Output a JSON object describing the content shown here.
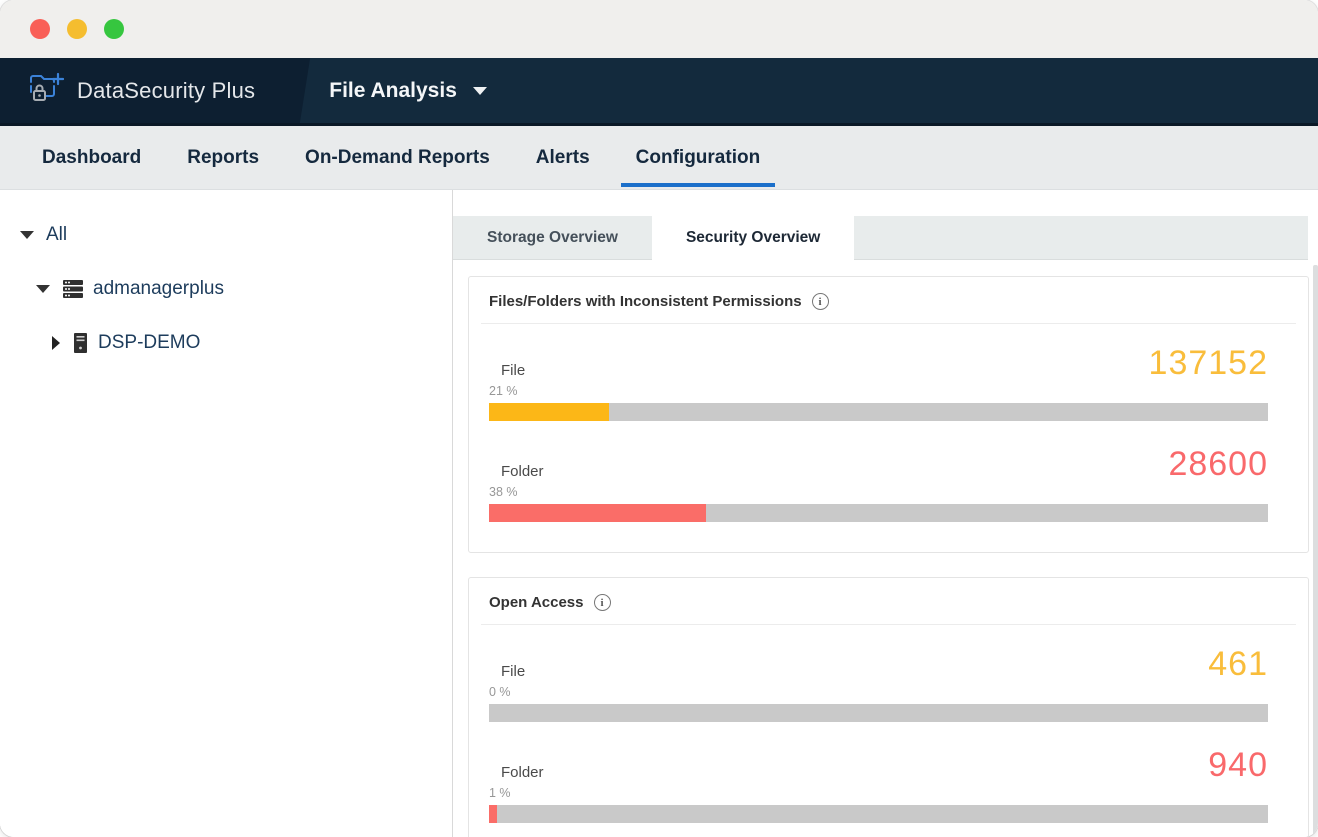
{
  "window": {
    "traffic_lights": [
      {
        "name": "close",
        "color": "#f95f57"
      },
      {
        "name": "minimize",
        "color": "#f5bd2f"
      },
      {
        "name": "maximize",
        "color": "#36c63f"
      }
    ]
  },
  "header": {
    "app_name": "DataSecurity Plus",
    "module_selector": {
      "label": "File Analysis"
    }
  },
  "nav": {
    "active_item": "Configuration",
    "accent_color": "#1b6fca",
    "items": [
      {
        "label": "Dashboard"
      },
      {
        "label": "Reports"
      },
      {
        "label": "On-Demand Reports"
      },
      {
        "label": "Alerts"
      },
      {
        "label": "Configuration"
      }
    ]
  },
  "sidebar": {
    "tree": [
      {
        "label": "All",
        "state": "expanded",
        "level": 0,
        "icon": null
      },
      {
        "label": "admanagerplus",
        "state": "expanded",
        "level": 1,
        "icon": "server-stack-icon"
      },
      {
        "label": "DSP-DEMO",
        "state": "collapsed",
        "level": 2,
        "icon": "server-icon"
      }
    ]
  },
  "main": {
    "active_tab": "Security Overview",
    "tabs": [
      {
        "label": "Storage Overview"
      },
      {
        "label": "Security Overview"
      }
    ],
    "cards": [
      {
        "title": "Files/Folders with Inconsistent Permissions",
        "rows": [
          {
            "label": "File",
            "percent_label": "21 %",
            "value": "137152",
            "color": "#f9bd3b",
            "bar_color": "#fcb717",
            "bar_width_pct": 15.4
          },
          {
            "label": "Folder",
            "percent_label": "38 %",
            "value": "28600",
            "color": "#f9696b",
            "bar_color": "#fa6d68",
            "bar_width_pct": 27.8
          }
        ]
      },
      {
        "title": "Open Access",
        "rows": [
          {
            "label": "File",
            "percent_label": "0 %",
            "value": "461",
            "color": "#f9bd3b",
            "bar_color": "#fcb717",
            "bar_width_pct": 0
          },
          {
            "label": "Folder",
            "percent_label": "1 %",
            "value": "940",
            "color": "#f9696b",
            "bar_color": "#fa6d68",
            "bar_width_pct": 1
          }
        ]
      }
    ]
  },
  "chart_data": [
    {
      "type": "bar",
      "title": "Files/Folders with Inconsistent Permissions",
      "categories": [
        "File",
        "Folder"
      ],
      "values": [
        137152,
        28600
      ],
      "percentages": [
        21,
        38
      ],
      "colors": [
        "#fcb717",
        "#fa6d68"
      ],
      "xlabel": "",
      "ylabel": ""
    },
    {
      "type": "bar",
      "title": "Open Access",
      "categories": [
        "File",
        "Folder"
      ],
      "values": [
        461,
        940
      ],
      "percentages": [
        0,
        1
      ],
      "colors": [
        "#fcb717",
        "#fa6d68"
      ],
      "xlabel": "",
      "ylabel": ""
    }
  ]
}
